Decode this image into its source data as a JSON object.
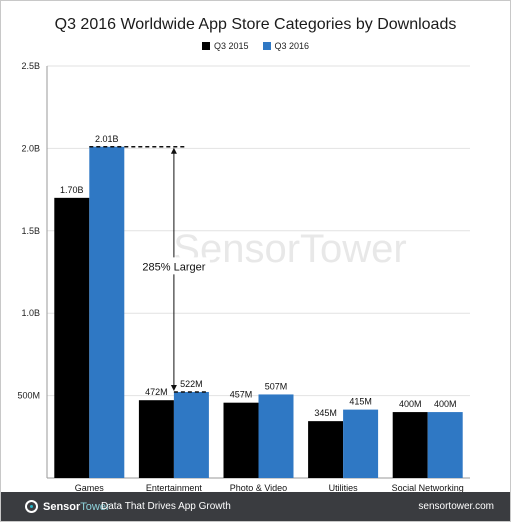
{
  "chart_data": {
    "type": "bar",
    "title": "Q3 2016 Worldwide App Store Categories by Downloads",
    "categories": [
      "Games",
      "Entertainment",
      "Photo & Video",
      "Utilities",
      "Social Networking"
    ],
    "series": [
      {
        "name": "Q3 2015",
        "color": "#000000",
        "values": [
          1.7,
          0.472,
          0.457,
          0.345,
          0.4
        ],
        "labels": [
          "1.70B",
          "472M",
          "457M",
          "345M",
          "400M"
        ]
      },
      {
        "name": "Q3 2016",
        "color": "#2f78c4",
        "values": [
          2.01,
          0.522,
          0.507,
          0.415,
          0.4
        ],
        "labels": [
          "2.01B",
          "522M",
          "507M",
          "415M",
          "400M"
        ]
      }
    ],
    "ylim": [
      0,
      2.5
    ],
    "yticks": [
      {
        "value": 0.5,
        "label": "500M"
      },
      {
        "value": 1.0,
        "label": "1.0B"
      },
      {
        "value": 1.5,
        "label": "1.5B"
      },
      {
        "value": 2.0,
        "label": "2.0B"
      },
      {
        "value": 2.5,
        "label": "2.5B"
      }
    ],
    "grid": true,
    "legend": "top-center",
    "annotation": {
      "text": "285% Larger",
      "from_value": 2.01,
      "to_value": 0.522
    }
  },
  "watermark": "SensorTower",
  "footer": {
    "brand_part1": "Sensor",
    "brand_part2": "Tower",
    "tagline": "Data That Drives App Growth",
    "url": "sensortower.com"
  }
}
